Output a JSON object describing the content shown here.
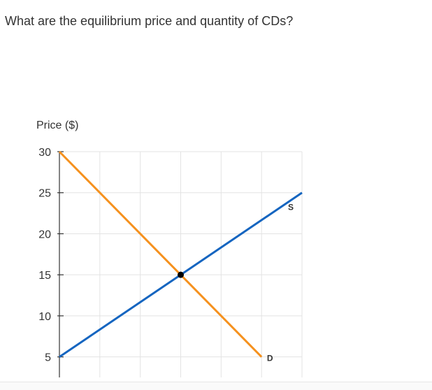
{
  "question": "What are the equilibrium price and quantity of CDs?",
  "colors": {
    "supply": "#1565c0",
    "demand": "#f5911e",
    "grid": "#e3e3e3",
    "axis": "#333333",
    "equilibrium": "#000000"
  },
  "chart_data": {
    "type": "line",
    "title": "",
    "xlabel": "",
    "ylabel": "Price ($)",
    "xlim": [
      0,
      6
    ],
    "ylim": [
      2.5,
      30
    ],
    "yticks": [
      30,
      25,
      20,
      15,
      10,
      5
    ],
    "grid": true,
    "series": [
      {
        "name": "S",
        "points": [
          [
            0,
            5
          ],
          [
            6,
            25
          ]
        ]
      },
      {
        "name": "D",
        "points": [
          [
            0,
            30
          ],
          [
            5,
            5
          ]
        ]
      }
    ],
    "equilibrium": {
      "x": 3,
      "y": 15
    }
  }
}
